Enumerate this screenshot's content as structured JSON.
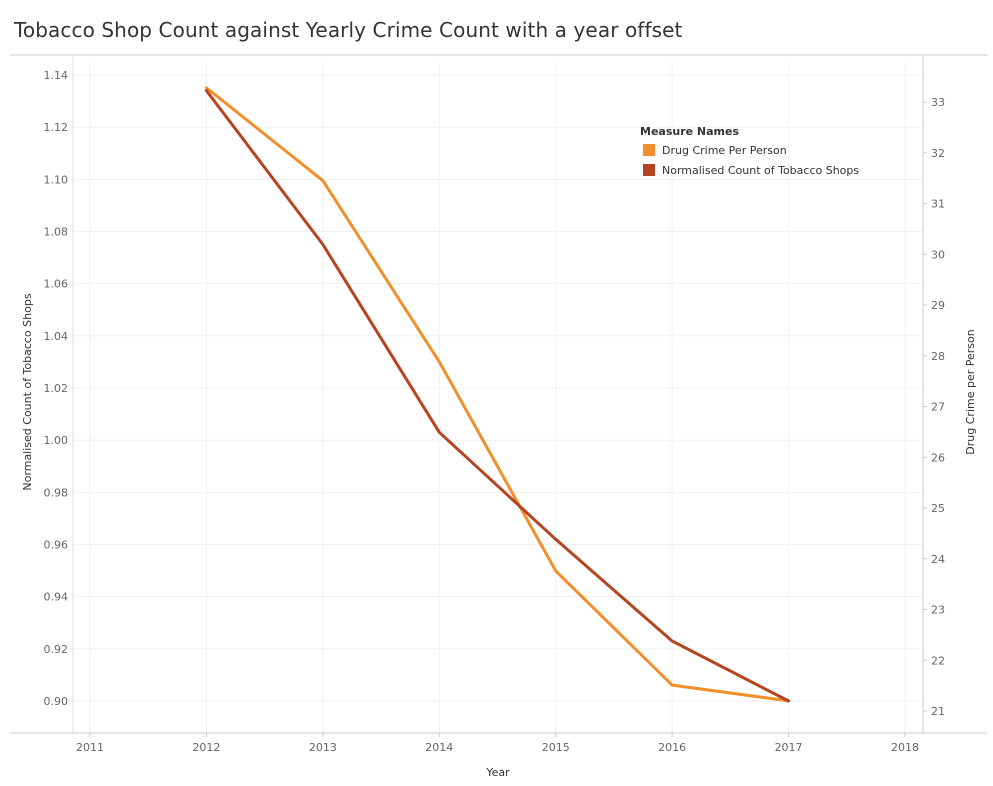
{
  "chart_data": {
    "type": "line",
    "title": "Tobacco Shop Count against Yearly Crime Count with a year offset",
    "xlabel": "Year",
    "x_ticks": [
      2011,
      2012,
      2013,
      2014,
      2015,
      2016,
      2017,
      2018
    ],
    "xlim": [
      2011,
      2018
    ],
    "y_left": {
      "label": "Normalised Count of Tobacco Shops",
      "range": [
        0.895,
        1.14
      ],
      "ticks": [
        0.9,
        0.92,
        0.94,
        0.96,
        0.98,
        1.0,
        1.02,
        1.04,
        1.06,
        1.08,
        1.1,
        1.12,
        1.14
      ]
    },
    "y_right": {
      "label": "Drug Crime per Person",
      "range": [
        20.8,
        33.9
      ],
      "ticks": [
        21,
        22,
        23,
        24,
        25,
        26,
        27,
        28,
        29,
        30,
        31,
        32,
        33
      ]
    },
    "legend": {
      "title": "Measure Names",
      "position": "top-right",
      "entries": [
        {
          "name": "Drug Crime Per Person",
          "color": "#f28e2b"
        },
        {
          "name": "Normalised Count of Tobacco Shops",
          "color": "#b5441f"
        }
      ]
    },
    "series": [
      {
        "name": "Drug Crime Per Person",
        "axis": "right",
        "color": "#f28e2b",
        "x": [
          2012,
          2013,
          2014,
          2015,
          2016,
          2017
        ],
        "values": [
          33.28,
          31.45,
          27.88,
          23.76,
          21.51,
          21.2
        ]
      },
      {
        "name": "Normalised Count of Tobacco Shops",
        "axis": "left",
        "color": "#b5441f",
        "x": [
          2012,
          2013,
          2014,
          2015,
          2016,
          2017
        ],
        "values": [
          1.134,
          1.075,
          1.003,
          0.962,
          0.923,
          0.9
        ]
      }
    ],
    "grid": true
  }
}
